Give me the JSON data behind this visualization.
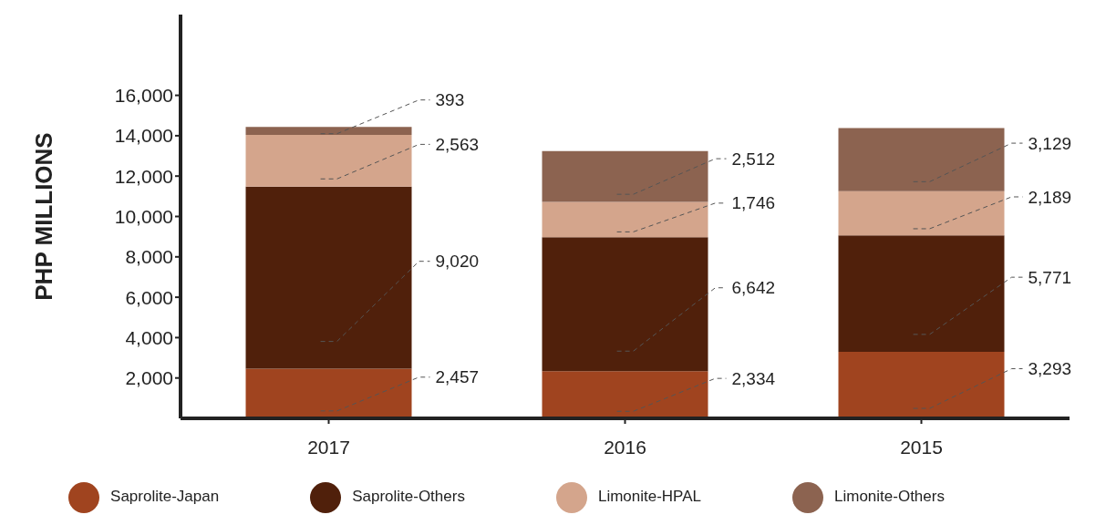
{
  "chart_data": {
    "type": "bar",
    "stacked": true,
    "ylabel": "PHP MILLIONS",
    "categories": [
      "2017",
      "2016",
      "2015"
    ],
    "ylim": [
      0,
      20000
    ],
    "yticks": [
      {
        "value": 2000,
        "label": "2,000"
      },
      {
        "value": 4000,
        "label": "4,000"
      },
      {
        "value": 6000,
        "label": "6,000"
      },
      {
        "value": 8000,
        "label": "8,000"
      },
      {
        "value": 10000,
        "label": "10,000"
      },
      {
        "value": 12000,
        "label": "12,000"
      },
      {
        "value": 14000,
        "label": "14,000"
      },
      {
        "value": 16000,
        "label": "16,000"
      }
    ],
    "grid": false,
    "legend": "bottom",
    "series": [
      {
        "name": "Saprolite-Japan",
        "color": "#a0441f",
        "values": [
          2457,
          2334,
          3293
        ],
        "value_labels": [
          "2,457",
          "2,334",
          "3,293"
        ]
      },
      {
        "name": "Saprolite-Others",
        "color": "#50200b",
        "values": [
          9020,
          6642,
          5771
        ],
        "value_labels": [
          "9,020",
          "6,642",
          "5,771"
        ]
      },
      {
        "name": "Limonite-HPAL",
        "color": "#d4a58c",
        "values": [
          2563,
          1746,
          2189
        ],
        "value_labels": [
          "2,563",
          "1,746",
          "2,189"
        ]
      },
      {
        "name": "Limonite-Others",
        "color": "#8c6350",
        "values": [
          393,
          2512,
          3129
        ],
        "value_labels": [
          "393",
          "2,512",
          "3,129"
        ]
      }
    ]
  }
}
